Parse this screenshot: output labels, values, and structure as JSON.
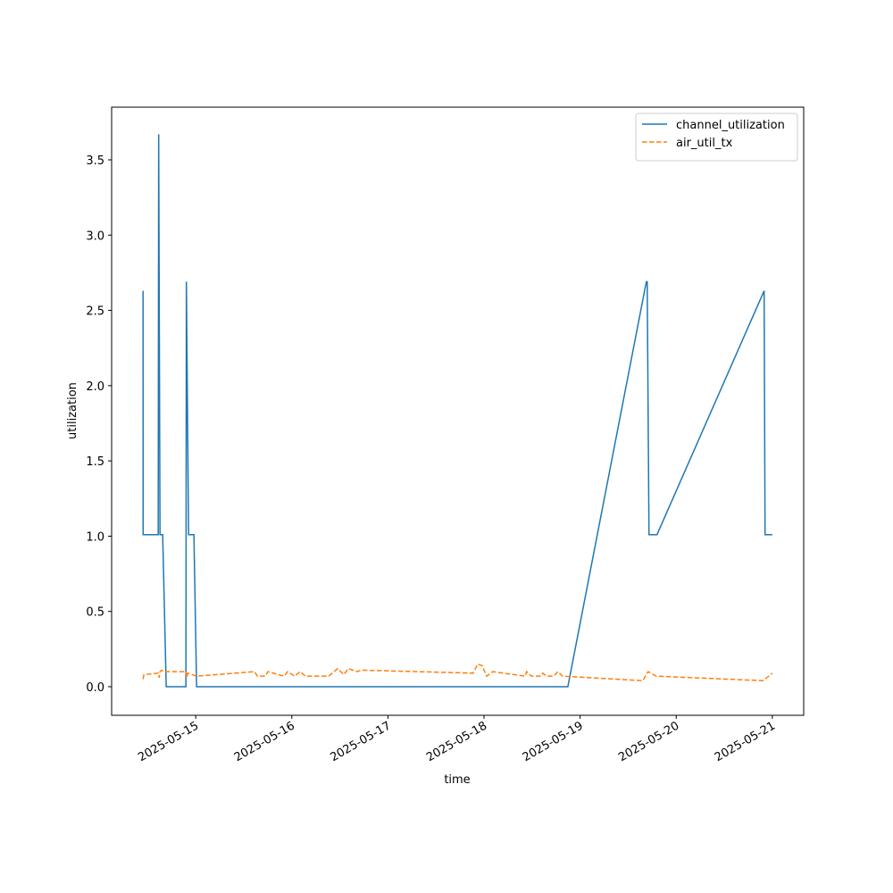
{
  "chart_data": {
    "type": "line",
    "xlabel": "time",
    "ylabel": "utilization",
    "xlim": [
      "2025-05-14T03:00",
      "2025-05-21T07:50"
    ],
    "xticks": [
      "2025-05-15",
      "2025-05-16",
      "2025-05-17",
      "2025-05-18",
      "2025-05-19",
      "2025-05-20",
      "2025-05-21"
    ],
    "ylim": [
      -0.19,
      3.85
    ],
    "yticks": [
      {
        "value": 0,
        "label": "0.0"
      },
      {
        "value": 0.5,
        "label": "0.5"
      },
      {
        "value": 1,
        "label": "1.0"
      },
      {
        "value": 1.5,
        "label": "1.5"
      },
      {
        "value": 2,
        "label": "2.0"
      },
      {
        "value": 2.5,
        "label": "2.5"
      },
      {
        "value": 3,
        "label": "3.0"
      },
      {
        "value": 3.5,
        "label": "3.5"
      }
    ],
    "legend": "upper right",
    "series": [
      {
        "name": "channel_utilization",
        "color": "#1f77b4",
        "linestyle": "solid",
        "x": [
          "2025-05-14T10:51",
          "2025-05-14T10:52",
          "2025-05-14T14:38",
          "2025-05-14T14:45",
          "2025-05-14T15:05",
          "2025-05-14T15:45",
          "2025-05-14T16:38",
          "2025-05-14T21:33",
          "2025-05-14T21:40",
          "2025-05-14T22:13",
          "2025-05-14T23:33",
          "2025-05-15T00:13",
          "2025-05-18T20:56",
          "2025-05-19T16:32",
          "2025-05-19T16:45",
          "2025-05-19T17:12",
          "2025-05-19T19:12",
          "2025-05-20T21:57",
          "2025-05-20T22:11",
          "2025-05-21T00:00"
        ],
        "values": [
          2.63,
          1.01,
          1.01,
          3.67,
          1.01,
          1.01,
          0,
          0,
          2.69,
          1.01,
          1.01,
          0,
          0,
          2.69,
          2.69,
          1.01,
          1.01,
          2.63,
          1.01,
          1.01
        ]
      },
      {
        "name": "air_util_tx",
        "color": "#ff7f0e",
        "linestyle": "dashed",
        "x": [
          "2025-05-14T10:51",
          "2025-05-14T11:04",
          "2025-05-14T14:38",
          "2025-05-14T14:52",
          "2025-05-14T15:05",
          "2025-05-14T15:32",
          "2025-05-14T15:59",
          "2025-05-14T21:33",
          "2025-05-14T21:46",
          "2025-05-14T22:00",
          "2025-05-15T00:13",
          "2025-05-15T14:42",
          "2025-05-15T15:23",
          "2025-05-15T17:23",
          "2025-05-15T18:03",
          "2025-05-15T22:04",
          "2025-05-15T22:57",
          "2025-05-16T00:44",
          "2025-05-16T02:04",
          "2025-05-16T03:25",
          "2025-05-16T09:12",
          "2025-05-16T11:26",
          "2025-05-16T12:59",
          "2025-05-16T14:06",
          "2025-05-16T16:20",
          "2025-05-16T17:13",
          "2025-05-17T21:18",
          "2025-05-17T22:25",
          "2025-05-17T23:32",
          "2025-05-18T00:39",
          "2025-05-18T02:12",
          "2025-05-18T10:14",
          "2025-05-18T10:40",
          "2025-05-18T11:47",
          "2025-05-18T14:01",
          "2025-05-18T14:41",
          "2025-05-18T15:34",
          "2025-05-18T17:21",
          "2025-05-18T18:28",
          "2025-05-18T19:35",
          "2025-05-19T15:38",
          "2025-05-19T16:59",
          "2025-05-19T18:59",
          "2025-05-20T21:43",
          "2025-05-21T00:00"
        ],
        "values": [
          0.05,
          0.08,
          0.09,
          0.06,
          0.1,
          0.11,
          0.1,
          0.1,
          0.06,
          0.09,
          0.07,
          0.1,
          0.07,
          0.07,
          0.1,
          0.07,
          0.1,
          0.07,
          0.1,
          0.07,
          0.07,
          0.12,
          0.08,
          0.12,
          0.1,
          0.11,
          0.09,
          0.15,
          0.14,
          0.07,
          0.1,
          0.07,
          0.1,
          0.07,
          0.07,
          0.09,
          0.07,
          0.07,
          0.1,
          0.07,
          0.04,
          0.1,
          0.07,
          0.04,
          0.09
        ]
      }
    ]
  }
}
